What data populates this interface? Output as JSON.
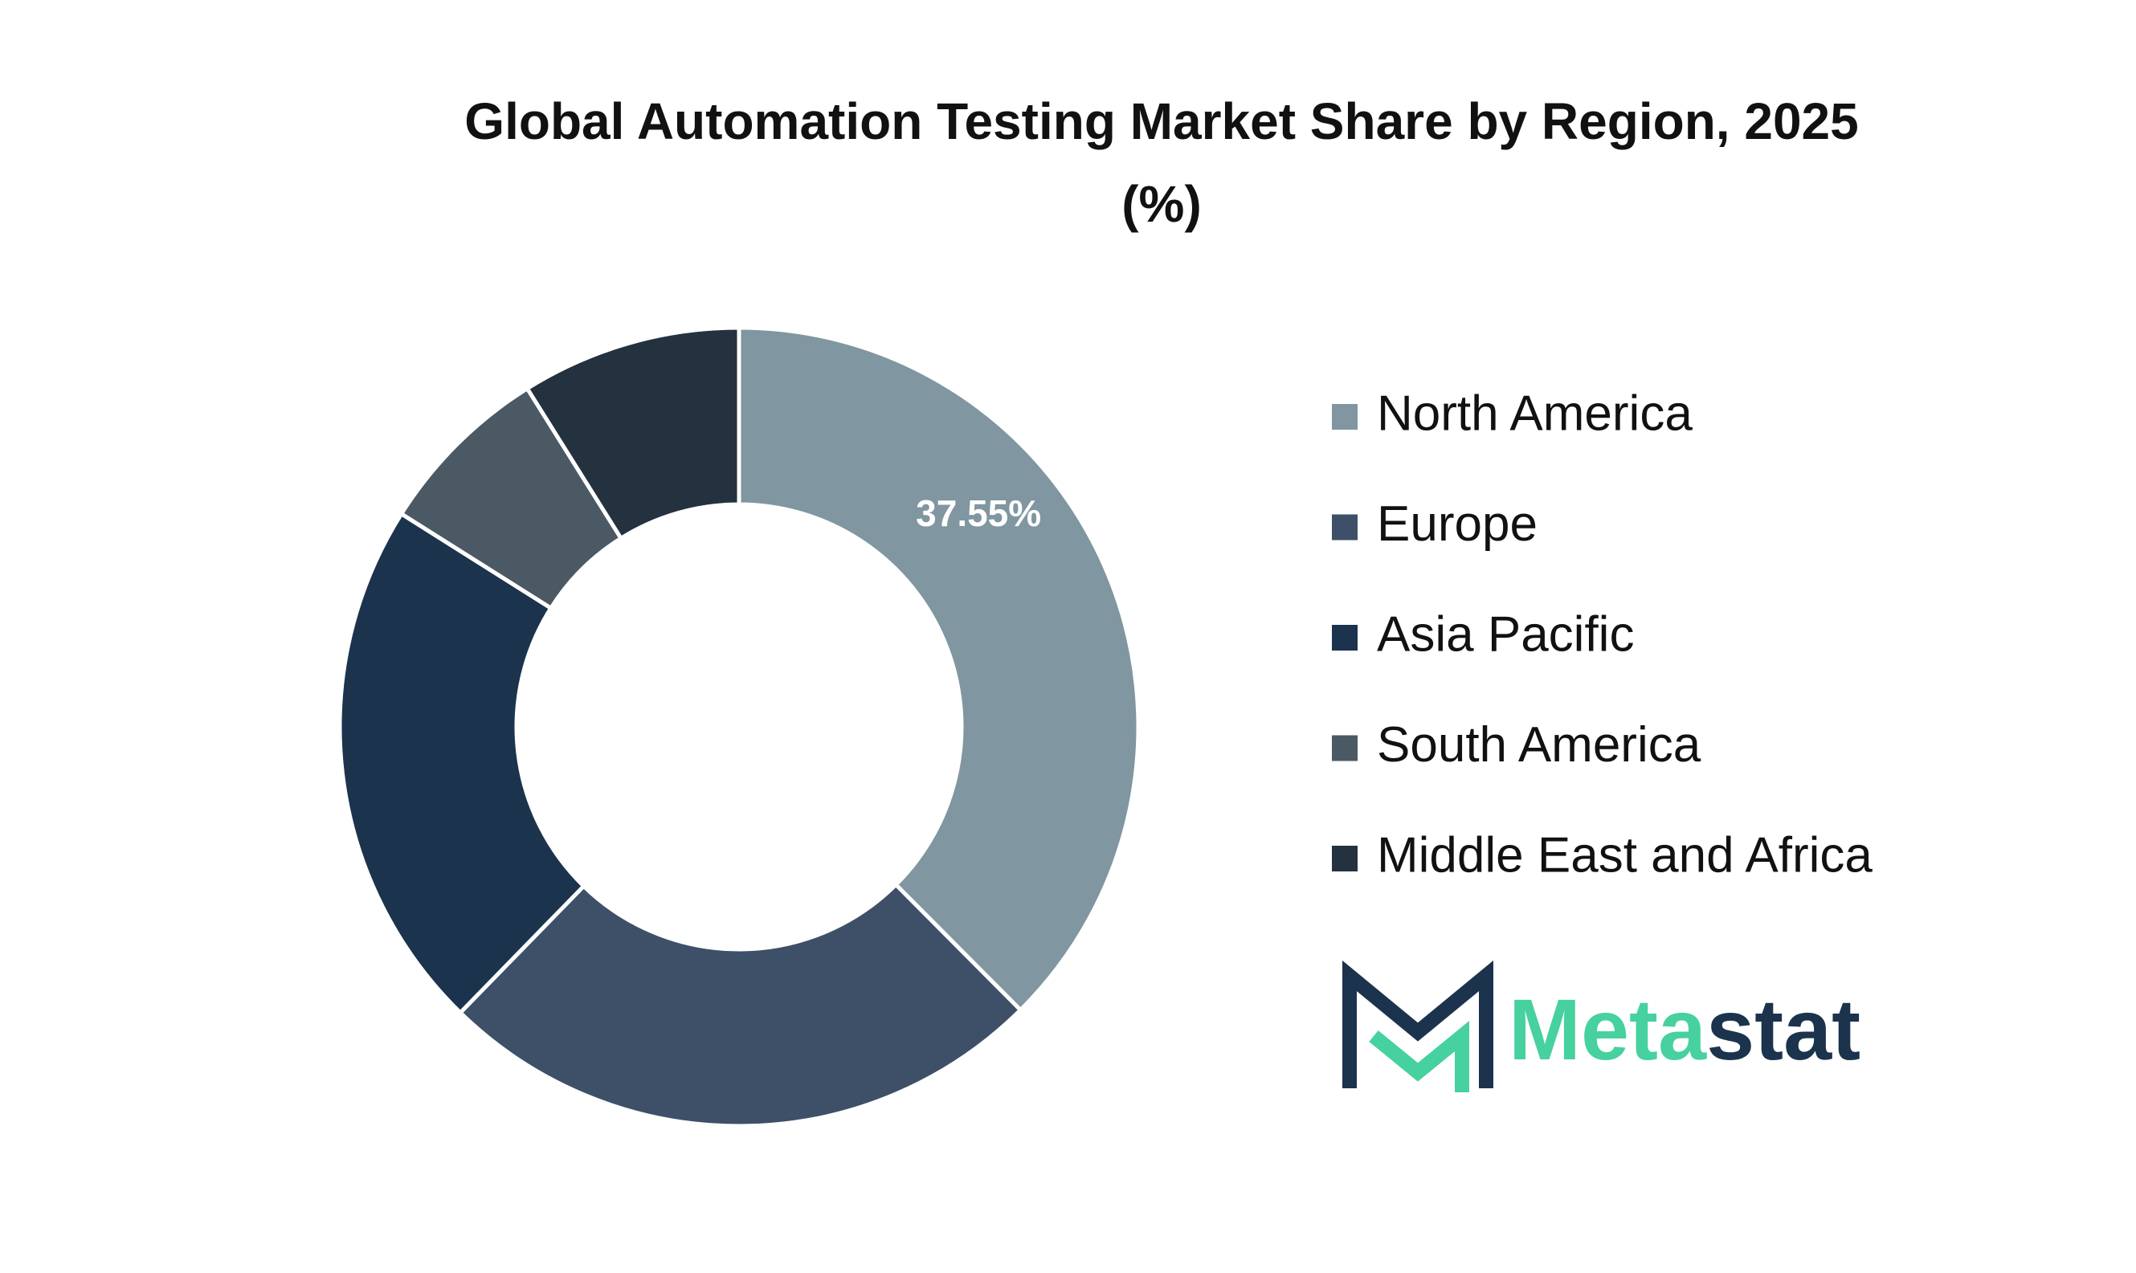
{
  "chart_data": {
    "type": "donut",
    "title": [
      "Global Automation Testing Market Share by Region, 2025",
      "(%)"
    ],
    "categories": [
      "North America",
      "Europe",
      "Asia Pacific",
      "South America",
      "Middle East and Africa"
    ],
    "values": [
      37.55,
      24.75,
      21.66,
      7.14,
      8.9
    ],
    "value_labels": [
      "37.55%",
      null,
      null,
      null,
      null
    ],
    "colors": [
      "#8096a0",
      "#3d5068",
      "#1c334d",
      "#4a5964",
      "#24313f"
    ],
    "legend": "right"
  },
  "logo": {
    "text_1": "Meta",
    "text_2": "stat"
  }
}
